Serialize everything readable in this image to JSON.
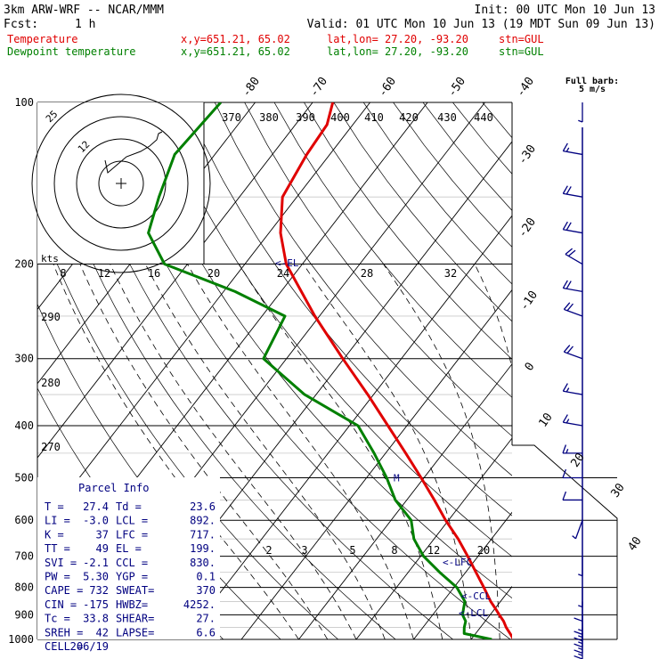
{
  "header": {
    "title": "3km ARW-WRF -- NCAR/MMM",
    "init": "Init: 00 UTC Mon 10 Jun 13",
    "fcst_label": "Fcst:",
    "fcst_value": "1 h",
    "valid": "Valid: 01 UTC Mon 10 Jun 13 (19 MDT Sun 09 Jun 13)"
  },
  "legend": [
    {
      "name": "Temperature",
      "color": "#e00000",
      "xy": "x,y=651.21, 65.02",
      "latlon": "lat,lon= 27.20, -93.20",
      "stn": "stn=GUL"
    },
    {
      "name": "Dewpoint temperature",
      "color": "#008000",
      "xy": "x,y=651.21, 65.02",
      "latlon": "lat,lon= 27.20, -93.20",
      "stn": "stn=GUL"
    }
  ],
  "barb_note": {
    "title": "Full barb:",
    "value": "5 m/s"
  },
  "parcel_info": {
    "title": "Parcel Info",
    "rows": [
      [
        "T  =",
        "27.4",
        "Td =",
        "23.6"
      ],
      [
        "LI =",
        "-3.0",
        "LCL =",
        "892."
      ],
      [
        "K  =",
        "37",
        "LFC =",
        "717."
      ],
      [
        "TT =",
        "49",
        "EL =",
        "199."
      ],
      [
        "SVI =",
        "-2.1",
        "CCL =",
        "830."
      ],
      [
        "PW =",
        "5.30",
        "YGP =",
        "0.1"
      ],
      [
        "CAPE =",
        "732",
        "SWEAT=",
        "370"
      ],
      [
        "CIN =",
        "-175",
        "HWBZ=",
        "4252."
      ],
      [
        "Tc =",
        "33.8",
        "SHEAR=",
        "27."
      ],
      [
        "SREH =",
        "42",
        "LAPSE=",
        "6.6"
      ],
      [
        "CELL =",
        "206/19",
        "",
        ""
      ]
    ]
  },
  "level_markers": {
    "el": "<-EL",
    "lfc": "<-LFC",
    "ccl": "<-CCL",
    "lcl": "<-LCL",
    "m": "M"
  },
  "hodograph": {
    "ring_labels": [
      "25",
      "12",
      "kts"
    ]
  },
  "chart_data": {
    "type": "line",
    "title": "",
    "xlabel": "",
    "ylabel": "",
    "y_scale": "log-pressure",
    "ylim": [
      1000,
      100
    ],
    "pressure_ticks": [
      100,
      200,
      300,
      400,
      500,
      600,
      700,
      800,
      900,
      1000
    ],
    "isotherm_labels_top": [
      -80,
      -70,
      -60,
      -50,
      -40
    ],
    "isotherm_labels_right": [
      -30,
      -20,
      -10,
      0,
      10,
      20,
      30,
      40
    ],
    "theta_labels": [
      370,
      380,
      390,
      400,
      410,
      420,
      430,
      440
    ],
    "theta_low_labels": [
      290,
      280,
      270
    ],
    "mixing_ratio_upper": [
      8,
      12,
      16,
      20,
      24,
      28,
      32
    ],
    "mixing_ratio_lower": [
      2,
      3,
      5,
      8,
      12,
      20
    ],
    "series": [
      {
        "name": "Temperature",
        "color": "#e00000",
        "p": [
          1000,
          975,
          950,
          925,
          900,
          875,
          850,
          800,
          750,
          700,
          650,
          600,
          550,
          500,
          450,
          400,
          350,
          300,
          250,
          200,
          175,
          150,
          125,
          110,
          100
        ],
        "t": [
          27.4,
          26.0,
          24.5,
          23.2,
          21.6,
          20.0,
          18.3,
          15.2,
          11.8,
          8.2,
          4.2,
          -0.5,
          -5.2,
          -10.5,
          -16.5,
          -23.3,
          -31.0,
          -40.2,
          -50.8,
          -62.8,
          -68.0,
          -72.5,
          -74.0,
          -74.5,
          -76.5
        ]
      },
      {
        "name": "Dewpoint temperature",
        "color": "#008000",
        "p": [
          1000,
          975,
          950,
          925,
          900,
          875,
          850,
          800,
          750,
          700,
          650,
          600,
          550,
          500,
          450,
          400,
          350,
          300,
          250,
          225,
          200,
          175,
          150,
          125,
          100
        ],
        "t": [
          23.6,
          18.0,
          17.2,
          16.6,
          15.2,
          14.5,
          13.8,
          10.5,
          5.5,
          0.5,
          -3.5,
          -6.5,
          -12.0,
          -16.5,
          -22.0,
          -28.5,
          -42.0,
          -54.0,
          -56.0,
          -68.0,
          -84.0,
          -91.0,
          -94.0,
          -97.0,
          -96.0
        ]
      }
    ],
    "wind_barbs": [
      {
        "p": 1000,
        "dir": 180,
        "spd": 15
      },
      {
        "p": 975,
        "dir": 180,
        "spd": 15
      },
      {
        "p": 950,
        "dir": 180,
        "spd": 15
      },
      {
        "p": 925,
        "dir": 180,
        "spd": 15
      },
      {
        "p": 900,
        "dir": 180,
        "spd": 15
      },
      {
        "p": 850,
        "dir": 180,
        "spd": 10
      },
      {
        "p": 800,
        "dir": 180,
        "spd": 5
      },
      {
        "p": 700,
        "dir": 180,
        "spd": 5
      },
      {
        "p": 600,
        "dir": 200,
        "spd": 5
      },
      {
        "p": 550,
        "dir": 270,
        "spd": 10
      },
      {
        "p": 500,
        "dir": 270,
        "spd": 10
      },
      {
        "p": 450,
        "dir": 270,
        "spd": 15
      },
      {
        "p": 400,
        "dir": 280,
        "spd": 15
      },
      {
        "p": 350,
        "dir": 280,
        "spd": 15
      },
      {
        "p": 300,
        "dir": 290,
        "spd": 20
      },
      {
        "p": 250,
        "dir": 290,
        "spd": 20
      },
      {
        "p": 225,
        "dir": 280,
        "spd": 20
      },
      {
        "p": 200,
        "dir": 300,
        "spd": 20
      },
      {
        "p": 175,
        "dir": 280,
        "spd": 20
      },
      {
        "p": 150,
        "dir": 280,
        "spd": 20
      },
      {
        "p": 125,
        "dir": 280,
        "spd": 15
      },
      {
        "p": 100,
        "dir": 180,
        "spd": 5
      }
    ]
  }
}
